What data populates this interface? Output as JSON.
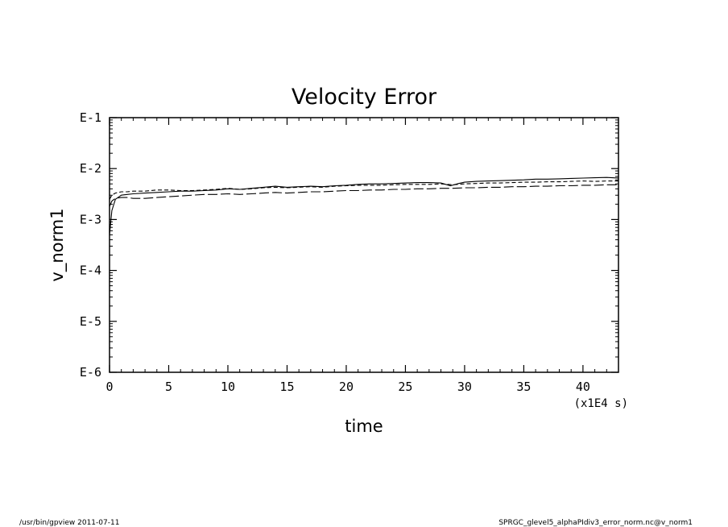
{
  "chart_data": {
    "type": "line",
    "title": "Velocity Error",
    "xlabel": "time",
    "x_unit": "(x1E4 s)",
    "ylabel": "v_norm1",
    "xlim": [
      0,
      43
    ],
    "ylim": [
      1e-06,
      0.1
    ],
    "y_scale": "log",
    "grid": false,
    "x_ticks": [
      0,
      5,
      10,
      15,
      20,
      25,
      30,
      35,
      40
    ],
    "x_tick_labels": [
      "0",
      "5",
      "10",
      "15",
      "20",
      "25",
      "30",
      "35",
      "40"
    ],
    "y_ticks": [
      1e-06,
      1e-05,
      0.0001,
      0.001,
      0.01,
      0.1
    ],
    "y_tick_labels": [
      "E-6",
      "E-5",
      "E-4",
      "E-3",
      "E-2",
      "E-1"
    ],
    "series": [
      {
        "line_style": "solid",
        "x": [
          0,
          0.2,
          0.5,
          1,
          1.5,
          2,
          3,
          4,
          5,
          6,
          7,
          8,
          9,
          10,
          11,
          12,
          13,
          14,
          15,
          16,
          17,
          18,
          19,
          20,
          21,
          22,
          23,
          24,
          25,
          26,
          27,
          28,
          28.8,
          29.5,
          30,
          31,
          32,
          33,
          34,
          35,
          36,
          37,
          38,
          39,
          40,
          41,
          42,
          43
        ],
        "y": [
          0.0005,
          0.0015,
          0.0025,
          0.003,
          0.0031,
          0.0032,
          0.0033,
          0.0034,
          0.0035,
          0.0036,
          0.0036,
          0.0037,
          0.0038,
          0.004,
          0.0039,
          0.0041,
          0.0043,
          0.0045,
          0.0043,
          0.0044,
          0.0045,
          0.0044,
          0.0046,
          0.0047,
          0.0049,
          0.005,
          0.005,
          0.0051,
          0.0052,
          0.0053,
          0.0053,
          0.0052,
          0.0046,
          0.0051,
          0.0054,
          0.0056,
          0.0057,
          0.0058,
          0.0059,
          0.006,
          0.0062,
          0.0062,
          0.0063,
          0.0064,
          0.0065,
          0.0066,
          0.0067,
          0.0065
        ]
      },
      {
        "line_style": "dashed",
        "x": [
          0,
          0.2,
          0.5,
          1,
          1.5,
          2,
          3,
          4,
          5,
          6,
          7,
          8,
          9,
          10,
          11,
          12,
          13,
          14,
          15,
          16,
          17,
          18,
          19,
          20,
          21,
          22,
          23,
          24,
          25,
          26,
          27,
          28,
          29,
          30,
          31,
          32,
          33,
          34,
          35,
          36,
          37,
          38,
          39,
          40,
          41,
          42,
          43
        ],
        "y": [
          0.0025,
          0.003,
          0.0033,
          0.0035,
          0.0035,
          0.0036,
          0.0036,
          0.0038,
          0.0038,
          0.0037,
          0.0037,
          0.0038,
          0.0039,
          0.0041,
          0.0039,
          0.004,
          0.0042,
          0.0043,
          0.0042,
          0.0043,
          0.0044,
          0.0043,
          0.0045,
          0.0046,
          0.0047,
          0.0047,
          0.0047,
          0.0048,
          0.0049,
          0.0049,
          0.0049,
          0.005,
          0.0048,
          0.005,
          0.0051,
          0.0052,
          0.0052,
          0.0053,
          0.0054,
          0.0054,
          0.0055,
          0.0055,
          0.0056,
          0.0057,
          0.0056,
          0.0057,
          0.0057
        ]
      },
      {
        "line_style": "long-dash",
        "x": [
          0,
          0.2,
          0.5,
          1,
          1.5,
          2,
          3,
          4,
          5,
          6,
          7,
          8,
          9,
          10,
          11,
          12,
          13,
          14,
          15,
          16,
          17,
          18,
          19,
          20,
          21,
          22,
          23,
          24,
          25,
          26,
          27,
          28,
          29,
          30,
          31,
          32,
          33,
          34,
          35,
          36,
          37,
          38,
          39,
          40,
          41,
          42,
          43
        ],
        "y": [
          0.0018,
          0.0023,
          0.0026,
          0.0027,
          0.0027,
          0.0026,
          0.0026,
          0.0027,
          0.0028,
          0.0029,
          0.003,
          0.0031,
          0.0031,
          0.0032,
          0.0031,
          0.0032,
          0.0033,
          0.0034,
          0.0033,
          0.0034,
          0.0035,
          0.0035,
          0.0036,
          0.0037,
          0.0037,
          0.0038,
          0.0038,
          0.0039,
          0.0039,
          0.004,
          0.004,
          0.0041,
          0.0041,
          0.0042,
          0.0042,
          0.0043,
          0.0043,
          0.0044,
          0.0044,
          0.0045,
          0.0045,
          0.0046,
          0.0046,
          0.0047,
          0.0047,
          0.0048,
          0.0048
        ]
      }
    ]
  },
  "footer": {
    "left": "/usr/bin/gpview   2011-07-11",
    "right": "SPRGC_glevel5_alphaPIdiv3_error_norm.nc@v_norm1"
  }
}
